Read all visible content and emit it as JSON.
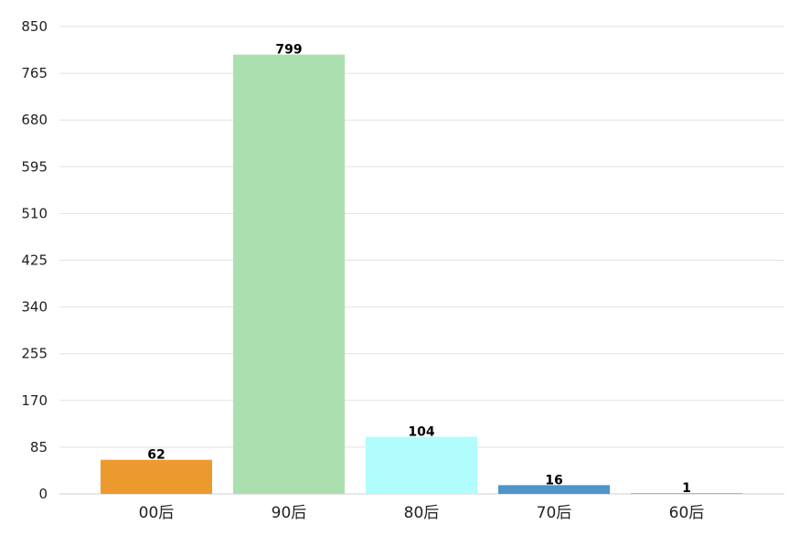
{
  "chart_data": {
    "type": "bar",
    "title": "",
    "xlabel": "",
    "ylabel": "",
    "categories": [
      "00后",
      "90后",
      "80后",
      "70后",
      "60后"
    ],
    "values": [
      62,
      799,
      104,
      16,
      1
    ],
    "colors": [
      "#ec9a2e",
      "#abdfb0",
      "#b1fcfc",
      "#4f95c9",
      "#f19a9a"
    ],
    "ylim": [
      0,
      850
    ],
    "yticks": [
      0,
      85,
      170,
      255,
      340,
      425,
      510,
      595,
      680,
      765,
      850
    ],
    "ytick_labels": [
      "0",
      "85",
      "170",
      "255",
      "340",
      "425",
      "510",
      "595",
      "680",
      "765",
      "850"
    ],
    "data_labels": [
      "62",
      "799",
      "104",
      "16",
      "1"
    ],
    "grid": true,
    "legend": "none"
  }
}
